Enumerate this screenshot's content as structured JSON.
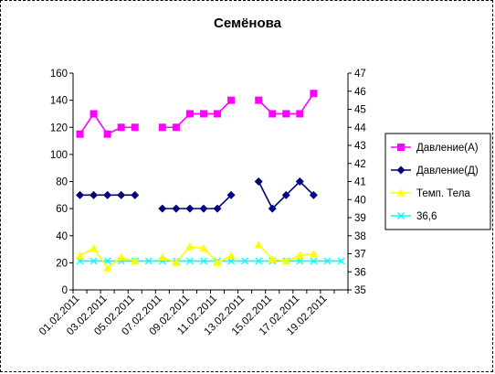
{
  "chart_data": {
    "type": "line",
    "title": "Семёнова",
    "x": [
      "01.02.2011",
      "02.02.2011",
      "03.02.2011",
      "04.02.2011",
      "05.02.2011",
      "06.02.2011",
      "07.02.2011",
      "08.02.2011",
      "09.02.2011",
      "10.02.2011",
      "11.02.2011",
      "12.02.2011",
      "13.02.2011",
      "14.02.2011",
      "15.02.2011",
      "16.02.2011",
      "17.02.2011",
      "18.02.2011",
      "19.02.2011",
      "20.02.2011"
    ],
    "x_tick_labels": [
      "01.02.2011",
      "03.02.2011",
      "05.02.2011",
      "07.02.2011",
      "09.02.2011",
      "11.02.2011",
      "13.02.2011",
      "15.02.2011",
      "17.02.2011",
      "19.02.2011"
    ],
    "y_left": {
      "min": 0,
      "max": 160,
      "step": 20
    },
    "y_right": {
      "min": 35,
      "max": 47,
      "step": 1
    },
    "series": [
      {
        "name": "Давление(А)",
        "axis": "left",
        "color": "#ff00ff",
        "marker": "square",
        "values": [
          115,
          130,
          115,
          120,
          120,
          null,
          120,
          120,
          130,
          130,
          130,
          140,
          null,
          140,
          130,
          130,
          130,
          145,
          null,
          null
        ]
      },
      {
        "name": "Давление(Д)",
        "axis": "left",
        "color": "#000080",
        "marker": "diamond",
        "values": [
          70,
          70,
          70,
          70,
          70,
          null,
          60,
          60,
          60,
          60,
          60,
          70,
          null,
          80,
          60,
          70,
          80,
          70,
          null,
          null
        ]
      },
      {
        "name": "Темп. Тела",
        "axis": "right",
        "color": "#ffff00",
        "marker": "triangle",
        "values": [
          36.9,
          37.3,
          36.2,
          36.8,
          36.6,
          null,
          36.8,
          36.5,
          37.4,
          37.3,
          36.5,
          36.9,
          null,
          37.5,
          36.7,
          36.6,
          36.9,
          37.0,
          null,
          null
        ]
      },
      {
        "name": "36,6",
        "axis": "right",
        "color": "#00ffff",
        "marker": "x",
        "values": [
          36.6,
          36.6,
          36.6,
          36.6,
          36.6,
          36.6,
          36.6,
          36.6,
          36.6,
          36.6,
          36.6,
          36.6,
          36.6,
          36.6,
          36.6,
          36.6,
          36.6,
          36.6,
          36.6,
          36.6
        ]
      }
    ],
    "legend_position": "right",
    "grid": false
  }
}
